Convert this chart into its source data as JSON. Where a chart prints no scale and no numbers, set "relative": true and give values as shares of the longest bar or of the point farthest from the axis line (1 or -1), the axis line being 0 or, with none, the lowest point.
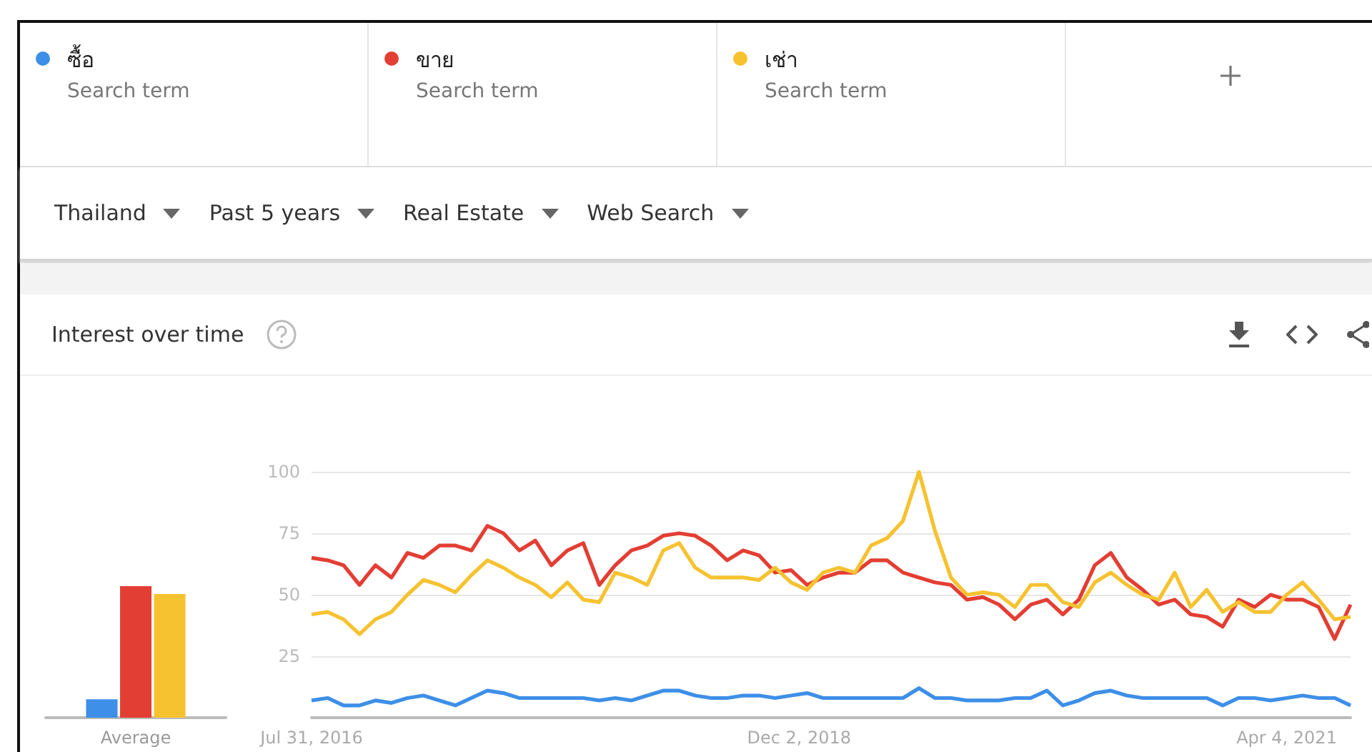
{
  "chart_data": [
    {
      "type": "bar",
      "relative": true,
      "categories": [
        "Average"
      ],
      "series": [
        {
          "color": "#3d8fe8",
          "values": [
            0.14
          ]
        },
        {
          "color": "#e33e33",
          "values": [
            1
          ]
        },
        {
          "color": "#f6c230",
          "values": [
            0.94
          ]
        }
      ]
    },
    {
      "type": "line",
      "title": "Interest over time",
      "legend": "top left",
      "grid": "y",
      "annotations": [
        "Search term",
        "Search term",
        "Search term",
        "Thailand",
        "Past 5 years",
        "Real Estate",
        "Web Search"
      ],
      "xlim": [
        "2016-07-31",
        "2021-07-25"
      ],
      "xticks": [
        {
          "value": "2016-07-31",
          "label": "Jul 31, 2016"
        },
        {
          "value": "2018-12-02",
          "label": "Dec 2, 2018"
        },
        {
          "value": "2021-04-04",
          "label": "Apr 4, 2021"
        }
      ],
      "ylim": [
        0,
        100
      ],
      "yticks": [
        25,
        50,
        75,
        100
      ],
      "x": [
        "2016-07-31",
        "2016-08-28",
        "2016-09-25",
        "2016-10-23",
        "2016-11-20",
        "2016-12-18",
        "2017-01-15",
        "2017-02-12",
        "2017-03-12",
        "2017-04-09",
        "2017-05-07",
        "2017-06-04",
        "2017-07-02",
        "2017-07-30",
        "2017-08-27",
        "2017-09-24",
        "2017-10-22",
        "2017-11-19",
        "2017-12-17",
        "2018-01-14",
        "2018-02-11",
        "2018-03-11",
        "2018-04-08",
        "2018-05-06",
        "2018-06-03",
        "2018-07-01",
        "2018-07-29",
        "2018-08-26",
        "2018-09-23",
        "2018-10-21",
        "2018-11-18",
        "2018-12-16",
        "2019-01-13",
        "2019-02-10",
        "2019-03-10",
        "2019-04-07",
        "2019-05-05",
        "2019-06-02",
        "2019-06-30",
        "2019-07-28",
        "2019-08-25",
        "2019-09-22",
        "2019-10-20",
        "2019-11-17",
        "2019-12-15",
        "2020-01-12",
        "2020-02-09",
        "2020-03-08",
        "2020-04-05",
        "2020-05-03",
        "2020-05-31",
        "2020-06-28",
        "2020-07-26",
        "2020-08-23",
        "2020-09-20",
        "2020-10-18",
        "2020-11-15",
        "2020-12-13",
        "2021-01-10",
        "2021-02-07",
        "2021-03-07",
        "2021-04-04",
        "2021-05-02",
        "2021-05-30",
        "2021-06-27",
        "2021-07-25"
      ],
      "series": [
        {
          "name": "ซื้อ",
          "color": "#3d8fe8",
          "values": [
            7,
            8,
            5,
            5,
            7,
            6,
            8,
            9,
            7,
            5,
            8,
            11,
            10,
            8,
            8,
            8,
            8,
            8,
            7,
            8,
            7,
            9,
            11,
            11,
            9,
            8,
            8,
            9,
            9,
            8,
            9,
            10,
            8,
            8,
            8,
            8,
            8,
            8,
            12,
            8,
            8,
            7,
            7,
            7,
            8,
            8,
            11,
            5,
            7,
            10,
            11,
            9,
            8,
            8,
            8,
            8,
            8,
            5,
            8,
            8,
            7,
            8,
            9,
            8,
            8,
            5
          ]
        },
        {
          "name": "ขาย",
          "color": "#e33e33",
          "values": [
            65,
            64,
            62,
            54,
            62,
            57,
            67,
            65,
            70,
            70,
            68,
            78,
            75,
            68,
            72,
            62,
            68,
            71,
            54,
            62,
            68,
            70,
            74,
            75,
            74,
            70,
            64,
            68,
            66,
            59,
            60,
            54,
            57,
            59,
            59,
            64,
            64,
            59,
            57,
            55,
            54,
            48,
            49,
            46,
            40,
            46,
            48,
            42,
            48,
            62,
            67,
            57,
            52,
            46,
            48,
            42,
            41,
            37,
            48,
            45,
            50,
            48,
            48,
            45,
            32,
            46
          ]
        },
        {
          "name": "เช่า",
          "color": "#f6c230",
          "values": [
            42,
            43,
            40,
            34,
            40,
            43,
            50,
            56,
            54,
            51,
            58,
            64,
            61,
            57,
            54,
            49,
            55,
            48,
            47,
            59,
            57,
            54,
            68,
            71,
            61,
            57,
            57,
            57,
            56,
            61,
            55,
            52,
            59,
            61,
            59,
            70,
            73,
            80,
            100,
            76,
            57,
            50,
            51,
            50,
            45,
            54,
            54,
            47,
            45,
            55,
            59,
            54,
            50,
            48,
            59,
            45,
            52,
            43,
            47,
            43,
            43,
            50,
            55,
            48,
            40,
            41
          ]
        }
      ]
    }
  ]
}
